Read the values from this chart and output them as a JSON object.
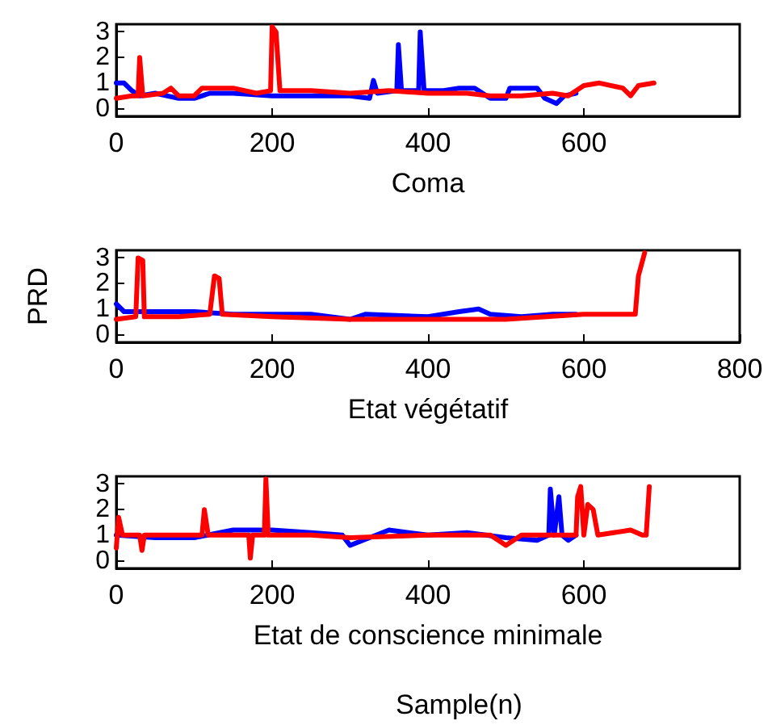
{
  "chart_data": [
    {
      "type": "line",
      "xlabel": "Coma",
      "xlim": [
        0,
        800
      ],
      "xticks": [
        0,
        200,
        400,
        600
      ],
      "ylim": [
        -0.3,
        3.3
      ],
      "yticks": [
        0,
        1,
        2,
        3
      ],
      "series": [
        {
          "color": "#0000ff",
          "x": [
            0,
            10,
            20,
            30,
            50,
            80,
            100,
            120,
            150,
            200,
            250,
            300,
            325,
            330,
            335,
            360,
            362,
            366,
            388,
            390,
            395,
            420,
            440,
            460,
            480,
            500,
            505,
            540,
            550,
            565,
            575,
            590
          ],
          "values": [
            1.0,
            1.0,
            0.7,
            0.5,
            0.6,
            0.4,
            0.4,
            0.6,
            0.6,
            0.5,
            0.5,
            0.5,
            0.4,
            1.1,
            0.6,
            0.7,
            2.5,
            0.7,
            0.7,
            3.0,
            0.7,
            0.7,
            0.8,
            0.8,
            0.4,
            0.4,
            0.8,
            0.8,
            0.4,
            0.2,
            0.5,
            0.6
          ]
        },
        {
          "color": "#ff0000",
          "x": [
            0,
            20,
            28,
            30,
            34,
            60,
            70,
            80,
            100,
            110,
            150,
            180,
            198,
            200,
            205,
            210,
            250,
            300,
            350,
            400,
            450,
            480,
            520,
            560,
            580,
            600,
            620,
            650,
            660,
            670,
            690
          ],
          "values": [
            0.4,
            0.5,
            0.5,
            2.0,
            0.5,
            0.6,
            0.8,
            0.5,
            0.5,
            0.8,
            0.8,
            0.6,
            0.7,
            3.2,
            3.0,
            0.7,
            0.7,
            0.6,
            0.7,
            0.6,
            0.6,
            0.5,
            0.5,
            0.6,
            0.5,
            0.9,
            1.0,
            0.8,
            0.5,
            0.9,
            1.0
          ]
        }
      ]
    },
    {
      "type": "line",
      "xlabel": "Etat végétatif",
      "ylabel": "PRD",
      "xlim": [
        0,
        800
      ],
      "xticks": [
        0,
        200,
        400,
        600,
        800
      ],
      "ylim": [
        -0.3,
        3.3
      ],
      "yticks": [
        0,
        1,
        2,
        3
      ],
      "series": [
        {
          "color": "#0000ff",
          "x": [
            0,
            10,
            50,
            100,
            150,
            200,
            250,
            300,
            320,
            400,
            440,
            465,
            480,
            520,
            560,
            590
          ],
          "values": [
            1.2,
            0.9,
            0.9,
            0.9,
            0.8,
            0.8,
            0.8,
            0.6,
            0.8,
            0.7,
            0.9,
            1.0,
            0.8,
            0.7,
            0.8,
            0.8
          ]
        },
        {
          "color": "#ff0000",
          "x": [
            0,
            25,
            28,
            34,
            36,
            80,
            120,
            126,
            132,
            136,
            200,
            300,
            400,
            500,
            600,
            666,
            670,
            678
          ],
          "values": [
            0.6,
            0.7,
            3.0,
            2.9,
            0.7,
            0.7,
            0.8,
            2.3,
            2.2,
            0.8,
            0.7,
            0.6,
            0.6,
            0.6,
            0.8,
            0.8,
            2.3,
            3.2
          ]
        }
      ]
    },
    {
      "type": "line",
      "xlabel": "Etat de conscience minimale",
      "xlim": [
        0,
        800
      ],
      "xticks": [
        0,
        200,
        400,
        600
      ],
      "ylim": [
        -0.3,
        3.3
      ],
      "yticks": [
        0,
        1,
        2,
        3
      ],
      "annotations": [
        "Sample(n)"
      ],
      "series": [
        {
          "color": "#0000ff",
          "x": [
            0,
            50,
            100,
            150,
            200,
            250,
            290,
            300,
            350,
            400,
            450,
            500,
            540,
            555,
            557,
            562,
            568,
            572,
            580,
            590
          ],
          "values": [
            1.0,
            0.9,
            0.9,
            1.2,
            1.2,
            1.1,
            1.0,
            0.6,
            1.2,
            1.0,
            1.1,
            0.9,
            0.8,
            1.0,
            2.8,
            1.0,
            2.5,
            1.0,
            0.8,
            1.0
          ]
        },
        {
          "color": "#ff0000",
          "x": [
            0,
            3,
            8,
            30,
            33,
            36,
            80,
            110,
            113,
            118,
            170,
            172,
            175,
            190,
            192,
            195,
            250,
            300,
            400,
            480,
            500,
            520,
            590,
            592,
            596,
            600,
            605,
            612,
            618,
            660,
            675,
            680,
            684
          ],
          "values": [
            0.5,
            1.7,
            1.0,
            1.0,
            0.4,
            1.0,
            1.0,
            1.0,
            2.0,
            1.0,
            1.0,
            0.1,
            1.0,
            1.0,
            3.2,
            1.0,
            1.0,
            0.9,
            1.0,
            1.0,
            0.6,
            1.0,
            1.0,
            2.5,
            2.9,
            1.0,
            2.2,
            2.0,
            1.0,
            1.2,
            1.0,
            1.0,
            2.9
          ]
        }
      ]
    }
  ]
}
